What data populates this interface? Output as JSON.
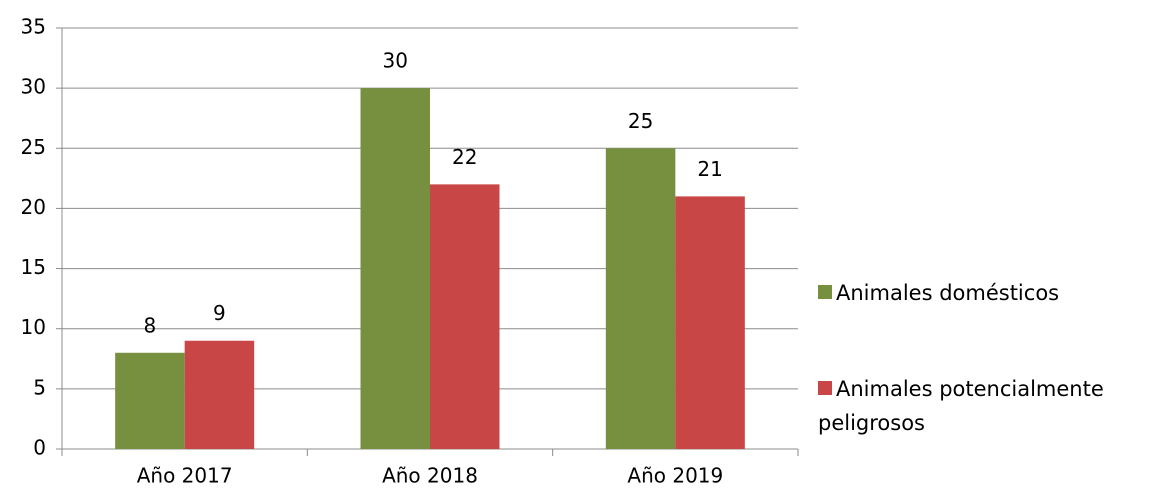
{
  "chart_data": {
    "type": "bar",
    "categories": [
      "Año 2017",
      "Año 2018",
      "Año 2019"
    ],
    "series": [
      {
        "name": "Animales domésticos",
        "color": "#77903f",
        "values": [
          8,
          30,
          25
        ]
      },
      {
        "name": "Animales potencialmente peligrosos",
        "color": "#c94646",
        "values": [
          9,
          22,
          21
        ]
      }
    ],
    "ylim": [
      0,
      35
    ],
    "yticks": [
      0,
      5,
      10,
      15,
      20,
      25,
      30,
      35
    ],
    "grid": true,
    "legend": "right"
  }
}
